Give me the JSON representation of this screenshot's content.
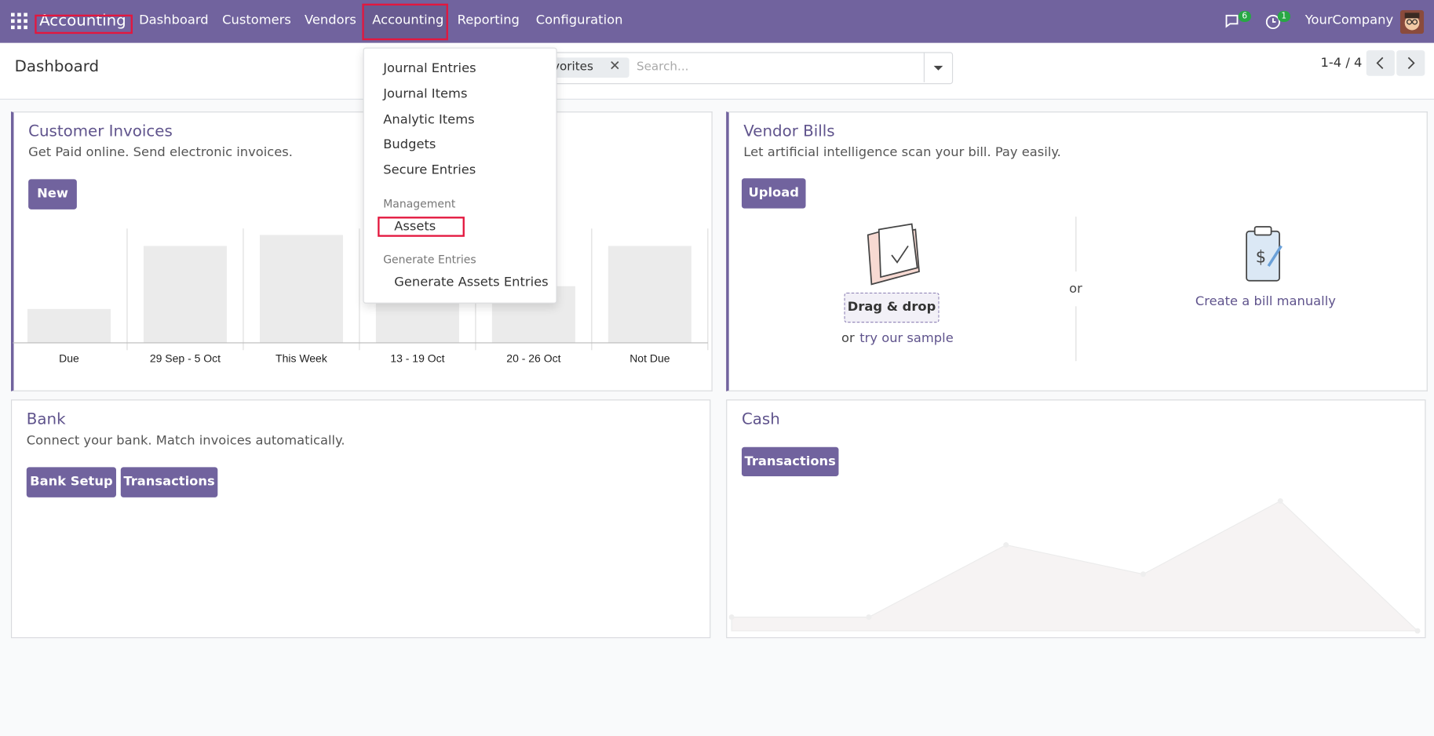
{
  "navbar": {
    "app": "Accounting",
    "menu": [
      "Dashboard",
      "Customers",
      "Vendors",
      "Accounting",
      "Reporting",
      "Configuration"
    ],
    "messages_count": 6,
    "activities_count": 1,
    "company": "YourCompany"
  },
  "control_panel": {
    "breadcrumb": "Dashboard",
    "facet": "Favorites",
    "search_placeholder": "Search...",
    "pager": "1-4 / 4"
  },
  "dropdown": {
    "items": [
      "Journal Entries",
      "Journal Items",
      "Analytic Items",
      "Budgets",
      "Secure Entries"
    ],
    "sections": [
      {
        "header": "Management",
        "items": [
          "Assets"
        ]
      },
      {
        "header": "Generate Entries",
        "items": [
          "Generate Assets Entries"
        ]
      }
    ]
  },
  "cards": [
    {
      "title": "Customer Invoices",
      "description": "Get Paid online. Send electronic invoices.",
      "buttons": [
        "New"
      ],
      "graph_labels": [
        "Due",
        "29 Sep - 5 Oct",
        "This Week",
        "13 - 19 Oct",
        "20 - 26 Oct",
        "Not Due"
      ]
    },
    {
      "title": "Vendor Bills",
      "description": "Let artificial intelligence scan your bill. Pay easily.",
      "buttons": [
        "Upload"
      ],
      "drop": "Drag & drop",
      "or": "or",
      "sample_link": "try our sample",
      "manual": "Create a bill manually"
    },
    {
      "title": "Bank",
      "description": "Connect your bank. Match invoices automatically.",
      "buttons": [
        "Bank Setup",
        "Transactions"
      ]
    },
    {
      "title": "Cash",
      "buttons": [
        "Transactions"
      ]
    }
  ]
}
